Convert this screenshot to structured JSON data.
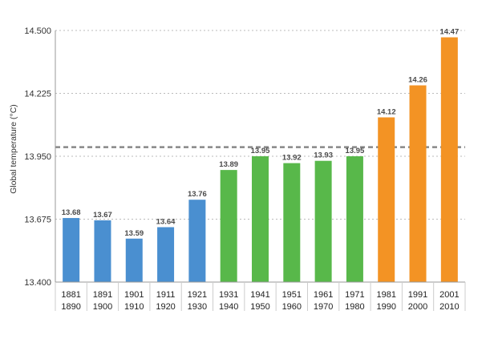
{
  "chart_data": {
    "type": "bar",
    "ylabel": "Global temperature (°C)",
    "ylim": [
      13.4,
      14.5
    ],
    "yticks": [
      "14.500",
      "14.225",
      "13.950",
      "13.675",
      "13.400"
    ],
    "ytick_values": [
      14.5,
      14.225,
      13.95,
      13.675,
      13.4
    ],
    "grid": true,
    "reference_line": 13.99,
    "categories": [
      [
        "1881",
        "1890"
      ],
      [
        "1891",
        "1900"
      ],
      [
        "1901",
        "1910"
      ],
      [
        "1911",
        "1920"
      ],
      [
        "1921",
        "1930"
      ],
      [
        "1931",
        "1940"
      ],
      [
        "1941",
        "1950"
      ],
      [
        "1951",
        "1960"
      ],
      [
        "1961",
        "1970"
      ],
      [
        "1971",
        "1980"
      ],
      [
        "1981",
        "1990"
      ],
      [
        "1991",
        "2000"
      ],
      [
        "2001",
        "2010"
      ]
    ],
    "values": [
      13.68,
      13.67,
      13.59,
      13.64,
      13.76,
      13.89,
      13.95,
      13.92,
      13.93,
      13.95,
      14.12,
      14.26,
      14.47
    ],
    "data_labels": [
      "13.68",
      "13.67",
      "13.59",
      "13.64",
      "13.76",
      "13.89",
      "13.95",
      "13.92",
      "13.93",
      "13.95",
      "14.12",
      "14.26",
      "14.47"
    ],
    "colors": [
      "#4a8fd0",
      "#4a8fd0",
      "#4a8fd0",
      "#4a8fd0",
      "#4a8fd0",
      "#58b84a",
      "#58b84a",
      "#58b84a",
      "#58b84a",
      "#58b84a",
      "#f39324",
      "#f39324",
      "#f39324"
    ],
    "axis_color": "#999999",
    "grid_color": "#bbbbbb",
    "reference_color": "#888888"
  }
}
